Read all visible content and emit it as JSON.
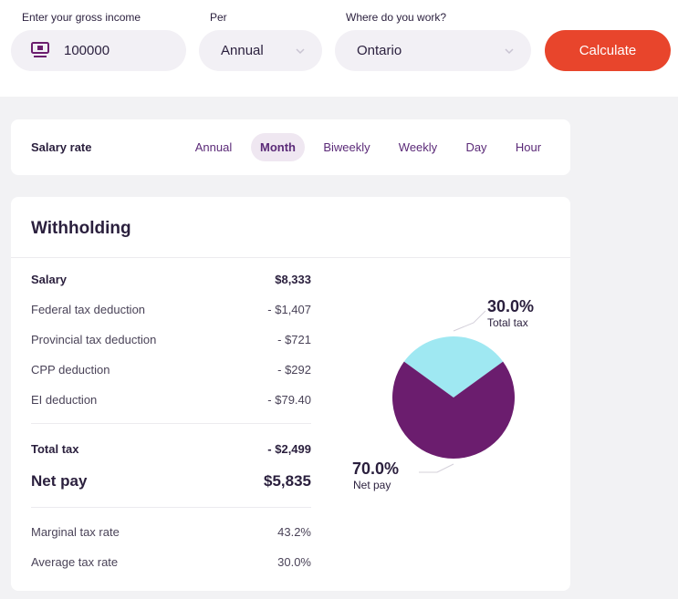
{
  "form": {
    "income_label": "Enter your gross income",
    "income_value": "100000",
    "per_label": "Per",
    "per_value": "Annual",
    "province_label": "Where do you work?",
    "province_value": "Ontario",
    "calculate_label": "Calculate"
  },
  "salary_rate": {
    "title": "Salary rate",
    "tabs": [
      "Annual",
      "Month",
      "Biweekly",
      "Weekly",
      "Day",
      "Hour"
    ],
    "active": "Month"
  },
  "withholding": {
    "title": "Withholding",
    "rows": [
      {
        "label": "Salary",
        "value": "$8,333"
      },
      {
        "label": "Federal tax deduction",
        "value": "- $1,407"
      },
      {
        "label": "Provincial tax deduction",
        "value": "- $721"
      },
      {
        "label": "CPP deduction",
        "value": "- $292"
      },
      {
        "label": "EI deduction",
        "value": "- $79.40"
      }
    ],
    "total_tax": {
      "label": "Total tax",
      "value": "- $2,499"
    },
    "net_pay": {
      "label": "Net pay",
      "value": "$5,835"
    },
    "rates": [
      {
        "label": "Marginal tax rate",
        "value": "43.2%"
      },
      {
        "label": "Average tax rate",
        "value": "30.0%"
      }
    ]
  },
  "chart_data": {
    "type": "pie",
    "slices": [
      {
        "name": "Total tax",
        "value": 30.0,
        "label": "30.0%",
        "color": "#9fe8f2"
      },
      {
        "name": "Net pay",
        "value": 70.0,
        "label": "70.0%",
        "color": "#6b1d6e"
      }
    ]
  },
  "colors": {
    "accent": "#e8452c",
    "brand_purple": "#5b2a78",
    "active_tab_bg": "#efe7f1"
  },
  "icons": {
    "income": "money-icon",
    "select": "chevron-down-icon"
  }
}
